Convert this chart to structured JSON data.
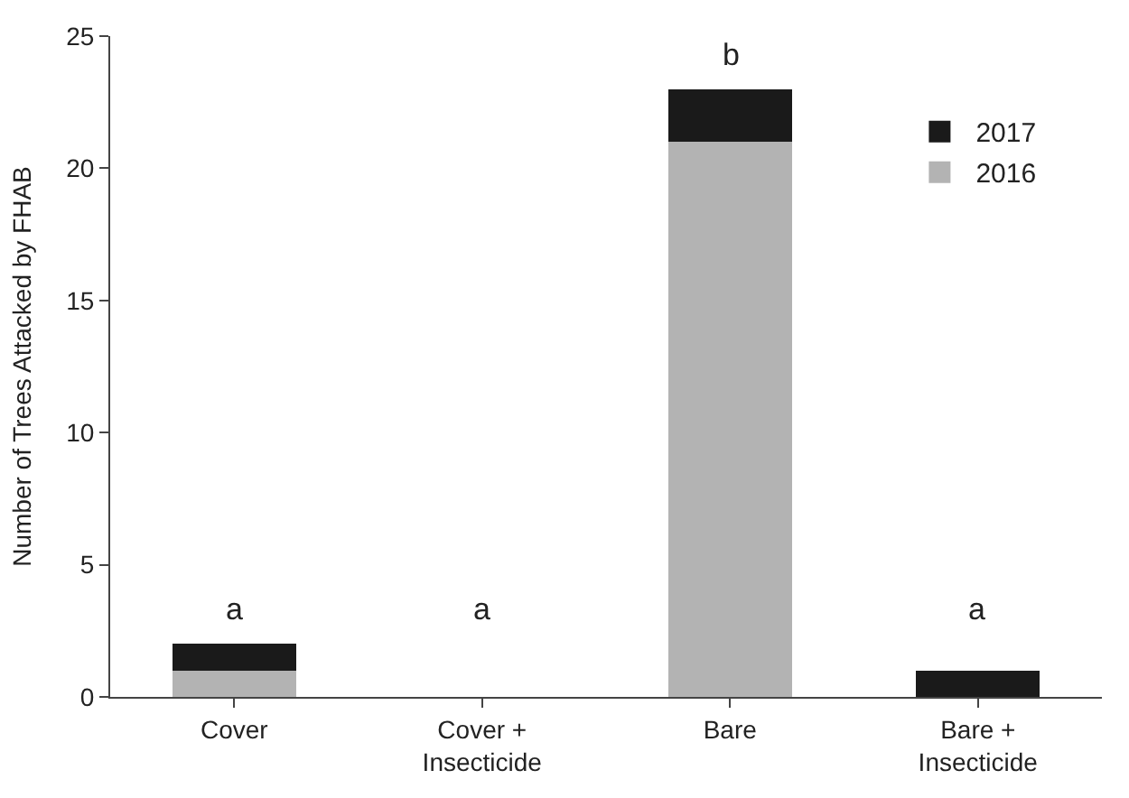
{
  "chart_data": {
    "type": "bar",
    "stacked": true,
    "ylabel": "Number of Trees Attacked by FHAB",
    "categories": [
      "Cover",
      "Cover +\nInsecticide",
      "Bare",
      "Bare +\nInsecticide"
    ],
    "series": [
      {
        "name": "2016",
        "color": "#b3b3b3",
        "values": [
          1,
          0,
          21,
          0
        ]
      },
      {
        "name": "2017",
        "color": "#1a1a1a",
        "values": [
          1,
          0,
          2,
          1
        ]
      }
    ],
    "ylim": [
      0,
      25
    ],
    "yticks": [
      0,
      5,
      10,
      15,
      20,
      25
    ],
    "legend": "top right",
    "annotations": [
      "a",
      "a",
      "b",
      "a"
    ]
  }
}
